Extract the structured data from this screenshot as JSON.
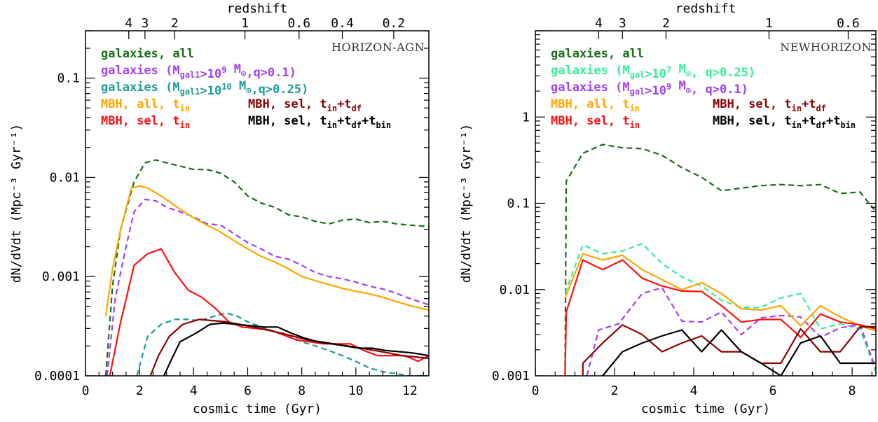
{
  "chart_data": [
    {
      "type": "line",
      "title": "HORIZON-AGN",
      "xlabel": "cosmic time (Gyr)",
      "ylabel": "dN/dVdt (Mpc⁻³ Gyr⁻¹)",
      "top_axis_label": "redshift",
      "xlim": [
        0,
        12.7
      ],
      "ylim": [
        0.0001,
        0.3
      ],
      "yscale": "log",
      "x_ticks": [
        0,
        2,
        4,
        6,
        8,
        10,
        12
      ],
      "y_ticks": [
        {
          "value": 0.0001,
          "label": "0.0001"
        },
        {
          "value": 0.001,
          "label": "0.001"
        },
        {
          "value": 0.01,
          "label": "0.01"
        },
        {
          "value": 0.1,
          "label": "0.1"
        }
      ],
      "redshift_ticks": [
        {
          "label": "4",
          "t": 1.6
        },
        {
          "label": "3",
          "t": 2.2
        },
        {
          "label": "2",
          "t": 3.3
        },
        {
          "label": "1",
          "t": 5.9
        },
        {
          "label": "0.6",
          "t": 7.9
        },
        {
          "label": "0.4",
          "t": 9.5
        },
        {
          "label": "0.2",
          "t": 11.4
        }
      ],
      "legend": [
        {
          "text": "galaxies, all",
          "color": "#1a6b1a"
        },
        {
          "text": "galaxies (Mgal1>10⁹ M⊙,q>0.1)",
          "color": "#a040f0"
        },
        {
          "text": "galaxies (Mgal1>10¹⁰ M⊙,q>0.25)",
          "color": "#1e9a96"
        },
        {
          "text": "MBH, all, tin",
          "color": "#ffa500"
        },
        {
          "text": "MBH, sel, tin",
          "color": "#ff1010"
        },
        {
          "text": "MBH, sel, tin+tdf",
          "color": "#8b0000"
        },
        {
          "text": "MBH, sel, tin+tdf+tbin",
          "color": "#000000"
        }
      ],
      "series": [
        {
          "name": "galaxies, all",
          "color": "#1a6b1a",
          "dash": true,
          "x": [
            0.75,
            1.0,
            1.3,
            1.8,
            2.2,
            2.6,
            3.0,
            3.5,
            4.0,
            4.5,
            5.0,
            5.5,
            6.0,
            6.5,
            7.0,
            7.5,
            8.0,
            8.5,
            9.0,
            9.5,
            10.0,
            10.5,
            11.0,
            11.5,
            12.0,
            12.7
          ],
          "y": [
            0.0001,
            0.0008,
            0.003,
            0.009,
            0.014,
            0.015,
            0.014,
            0.013,
            0.012,
            0.012,
            0.011,
            0.009,
            0.0065,
            0.0055,
            0.005,
            0.0042,
            0.004,
            0.0036,
            0.0034,
            0.0037,
            0.0038,
            0.0035,
            0.0036,
            0.0034,
            0.0033,
            0.0032
          ]
        },
        {
          "name": "galaxies (Mgal1>10⁹ M⊙,q>0.1)",
          "color": "#a040f0",
          "dash": true,
          "x": [
            0.8,
            1.1,
            1.5,
            1.8,
            2.2,
            2.6,
            3.0,
            3.5,
            4.0,
            4.5,
            5.0,
            5.5,
            6.0,
            6.5,
            7.0,
            7.5,
            8.0,
            8.5,
            9.0,
            9.5,
            10.0,
            10.5,
            11.0,
            11.5,
            12.0,
            12.7
          ],
          "y": [
            0.0001,
            0.0006,
            0.002,
            0.0045,
            0.006,
            0.0058,
            0.005,
            0.0045,
            0.004,
            0.0034,
            0.0033,
            0.0027,
            0.0022,
            0.0019,
            0.0016,
            0.0015,
            0.0013,
            0.0011,
            0.001,
            0.00095,
            0.00088,
            0.0008,
            0.00075,
            0.00068,
            0.0006,
            0.00052
          ]
        },
        {
          "name": "galaxies (Mgal1>10¹⁰ M⊙,q>0.25)",
          "color": "#1e9a96",
          "dash": true,
          "x": [
            1.9,
            2.3,
            2.8,
            3.3,
            3.8,
            4.2,
            4.8,
            5.2,
            5.6,
            6.0,
            6.5,
            7.0,
            7.5,
            8.0,
            8.5,
            9.0,
            9.5,
            10.0,
            10.5,
            11.0,
            11.5,
            12.0,
            12.7
          ],
          "y": [
            0.0001,
            0.00025,
            0.00033,
            0.00037,
            0.00037,
            0.00036,
            0.0004,
            0.00043,
            0.0004,
            0.00035,
            0.00031,
            0.00028,
            0.00026,
            0.00022,
            0.0002,
            0.00018,
            0.00016,
            0.00014,
            0.00012,
            0.00011,
            0.000105,
            0.0001,
            0.0001
          ]
        },
        {
          "name": "MBH, all, tin",
          "color": "#ffa500",
          "dash": false,
          "x": [
            0.75,
            1.0,
            1.3,
            1.7,
            2.0,
            2.3,
            2.8,
            3.3,
            4.0,
            4.5,
            5.0,
            5.5,
            6.0,
            6.5,
            7.0,
            7.5,
            8.0,
            8.5,
            9.0,
            9.5,
            10.0,
            10.5,
            11.0,
            11.5,
            12.0,
            12.7
          ],
          "y": [
            0.0004,
            0.0012,
            0.003,
            0.0078,
            0.0082,
            0.0078,
            0.0065,
            0.0052,
            0.0039,
            0.0033,
            0.0028,
            0.0023,
            0.0019,
            0.0016,
            0.0014,
            0.0012,
            0.001,
            0.00091,
            0.00083,
            0.00076,
            0.00071,
            0.00067,
            0.00062,
            0.00056,
            0.00051,
            0.00046
          ]
        },
        {
          "name": "MBH, sel, tin",
          "color": "#ff1010",
          "dash": false,
          "x": [
            0.9,
            1.3,
            1.8,
            2.3,
            2.8,
            3.3,
            3.8,
            4.3,
            4.8,
            5.3,
            5.8,
            6.3,
            6.8,
            7.3,
            7.8,
            8.3,
            8.8,
            9.3,
            9.8,
            10.3,
            10.8,
            11.3,
            11.8,
            12.3,
            12.7
          ],
          "y": [
            0.0001,
            0.00035,
            0.0013,
            0.0017,
            0.0019,
            0.0011,
            0.00073,
            0.00062,
            0.00048,
            0.00035,
            0.00031,
            0.0003,
            0.00029,
            0.00026,
            0.00023,
            0.00022,
            0.00021,
            0.00021,
            0.00021,
            0.00018,
            0.00016,
            0.00016,
            0.00016,
            0.00014,
            0.00016
          ]
        },
        {
          "name": "MBH, sel, tin+tdf",
          "color": "#8b0000",
          "dash": false,
          "x": [
            2.4,
            2.7,
            3.1,
            3.6,
            4.2,
            4.7,
            5.2,
            5.7,
            6.2,
            6.7,
            7.2,
            7.7,
            8.2,
            8.7,
            9.2,
            9.7,
            10.2,
            10.7,
            11.2,
            11.7,
            12.2,
            12.7
          ],
          "y": [
            0.0001,
            0.00016,
            0.00025,
            0.00033,
            0.00037,
            0.00036,
            0.00035,
            0.00033,
            0.00031,
            0.00029,
            0.00027,
            0.00025,
            0.00023,
            0.00022,
            0.00021,
            0.0002,
            0.00019,
            0.00018,
            0.00017,
            0.00016,
            0.000155,
            0.00015
          ]
        },
        {
          "name": "MBH, sel, tin+tdf+tbin",
          "color": "#000000",
          "dash": false,
          "x": [
            2.9,
            3.2,
            3.5,
            4.1,
            4.6,
            5.1,
            5.6,
            6.1,
            6.6,
            7.1,
            7.6,
            8.1,
            8.6,
            9.1,
            9.6,
            10.1,
            10.6,
            11.1,
            11.6,
            12.1,
            12.7
          ],
          "y": [
            0.0001,
            0.00015,
            0.00022,
            0.00027,
            0.00033,
            0.00034,
            0.00033,
            0.00032,
            0.00031,
            0.00031,
            0.00027,
            0.00024,
            0.00022,
            0.00021,
            0.0002,
            0.00019,
            0.00019,
            0.00018,
            0.000175,
            0.00017,
            0.00016
          ]
        }
      ]
    },
    {
      "type": "line",
      "title": "NEWHORIZON",
      "xlabel": "cosmic time (Gyr)",
      "ylabel": "dN/dVdt (Mpc⁻³ Gyr⁻¹)",
      "top_axis_label": "redshift",
      "xlim": [
        0,
        8.6
      ],
      "ylim": [
        0.001,
        10
      ],
      "yscale": "log",
      "x_ticks": [
        0,
        2,
        4,
        6,
        8
      ],
      "y_ticks": [
        {
          "value": 0.001,
          "label": "0.001"
        },
        {
          "value": 0.01,
          "label": "0.01"
        },
        {
          "value": 0.1,
          "label": "0.1"
        },
        {
          "value": 1,
          "label": "1"
        }
      ],
      "redshift_ticks": [
        {
          "label": "4",
          "t": 1.6
        },
        {
          "label": "3",
          "t": 2.2
        },
        {
          "label": "2",
          "t": 3.3
        },
        {
          "label": "1",
          "t": 5.9
        },
        {
          "label": "0.6",
          "t": 7.9
        }
      ],
      "legend": [
        {
          "text": "galaxies, all",
          "color": "#1a6b1a"
        },
        {
          "text": "galaxies (Mgal>10⁷ M⊙,  q>0.25)",
          "color": "#33ee99"
        },
        {
          "text": "galaxies (Mgal>10⁹ M⊙, q>0.1)",
          "color": "#a040f0"
        },
        {
          "text": "MBH, all, tin",
          "color": "#ffa500"
        },
        {
          "text": "MBH, sel, tin",
          "color": "#ff1010"
        },
        {
          "text": "MBH, sel, tin+tdf",
          "color": "#8b0000"
        },
        {
          "text": "MBH, sel, tin+tdf+tbin",
          "color": "#000000"
        }
      ],
      "series": [
        {
          "name": "galaxies, all",
          "color": "#1a6b1a",
          "dash": true,
          "x": [
            0.75,
            0.78,
            1.2,
            1.7,
            2.2,
            2.7,
            3.2,
            3.7,
            4.2,
            4.7,
            5.2,
            5.7,
            6.2,
            6.7,
            7.2,
            7.7,
            8.2,
            8.6
          ],
          "y": [
            0.001,
            0.18,
            0.38,
            0.48,
            0.44,
            0.43,
            0.36,
            0.26,
            0.2,
            0.14,
            0.15,
            0.16,
            0.165,
            0.16,
            0.165,
            0.13,
            0.135,
            0.08
          ]
        },
        {
          "name": "galaxies (Mgal>10⁷ M⊙,  q>0.25)",
          "color": "#33ee99",
          "dash": true,
          "x": [
            0.75,
            1.2,
            1.7,
            2.2,
            2.7,
            3.2,
            3.7,
            4.2,
            4.7,
            5.2,
            5.7,
            6.2,
            6.7,
            7.2,
            7.7,
            8.2,
            8.6
          ],
          "y": [
            0.009,
            0.033,
            0.026,
            0.028,
            0.034,
            0.02,
            0.014,
            0.011,
            0.0075,
            0.0062,
            0.0062,
            0.008,
            0.009,
            0.0035,
            0.004,
            0.0035,
            0.0011
          ]
        },
        {
          "name": "galaxies (Mgal>10⁹ M⊙, q>0.1)",
          "color": "#a040f0",
          "dash": true,
          "x": [
            1.3,
            1.6,
            2.1,
            2.7,
            3.2,
            3.7,
            4.2,
            4.7,
            5.2,
            5.7,
            6.2,
            6.7,
            7.2,
            7.7,
            8.2,
            8.6
          ],
          "y": [
            0.001,
            0.0034,
            0.004,
            0.009,
            0.0105,
            0.0043,
            0.0042,
            0.0055,
            0.003,
            0.0047,
            0.005,
            0.0048,
            0.0028,
            0.0036,
            0.0039,
            0.0012
          ]
        },
        {
          "name": "MBH, all, tin",
          "color": "#ffa500",
          "dash": false,
          "x": [
            0.75,
            1.2,
            1.7,
            2.2,
            2.7,
            3.2,
            3.7,
            4.2,
            4.7,
            5.2,
            5.7,
            6.2,
            6.7,
            7.2,
            7.7,
            8.2,
            8.6
          ],
          "y": [
            0.008,
            0.026,
            0.022,
            0.025,
            0.017,
            0.013,
            0.01,
            0.012,
            0.009,
            0.006,
            0.0058,
            0.0065,
            0.0038,
            0.0065,
            0.0048,
            0.0038,
            0.0033
          ]
        },
        {
          "name": "MBH, sel, tin",
          "color": "#ff1010",
          "dash": false,
          "x": [
            0.75,
            0.78,
            1.2,
            1.7,
            2.2,
            2.7,
            3.2,
            3.7,
            4.2,
            4.7,
            5.2,
            5.7,
            6.2,
            6.7,
            7.2,
            7.7,
            8.2,
            8.6
          ],
          "y": [
            0.001,
            0.0055,
            0.022,
            0.017,
            0.022,
            0.0135,
            0.011,
            0.0096,
            0.0095,
            0.0065,
            0.0042,
            0.0045,
            0.0045,
            0.0028,
            0.0052,
            0.0042,
            0.0039,
            0.0035
          ]
        },
        {
          "name": "MBH, sel, tin+tdf",
          "color": "#8b0000",
          "dash": false,
          "x": [
            1.2,
            1.2,
            1.7,
            2.2,
            2.7,
            3.2,
            3.7,
            4.2,
            4.7,
            5.2,
            5.7,
            6.2,
            6.7,
            7.2,
            7.7,
            8.2,
            8.6
          ],
          "y": [
            0.001,
            0.0014,
            0.0024,
            0.0039,
            0.003,
            0.0019,
            0.0024,
            0.0029,
            0.0019,
            0.0019,
            0.0014,
            0.0014,
            0.0035,
            0.0019,
            0.0019,
            0.0037,
            0.0037
          ]
        },
        {
          "name": "MBH, sel, tin+tdf+tbin",
          "color": "#000000",
          "dash": false,
          "x": [
            1.7,
            2.2,
            2.7,
            3.2,
            3.7,
            4.2,
            4.7,
            5.2,
            5.7,
            6.2,
            6.7,
            7.2,
            7.7,
            8.2,
            8.6
          ],
          "y": [
            0.001,
            0.0019,
            0.0024,
            0.0029,
            0.0034,
            0.0019,
            0.0034,
            0.0019,
            0.0014,
            0.0009,
            0.0024,
            0.0029,
            0.0014,
            0.0014,
            0.0014
          ]
        }
      ]
    }
  ]
}
